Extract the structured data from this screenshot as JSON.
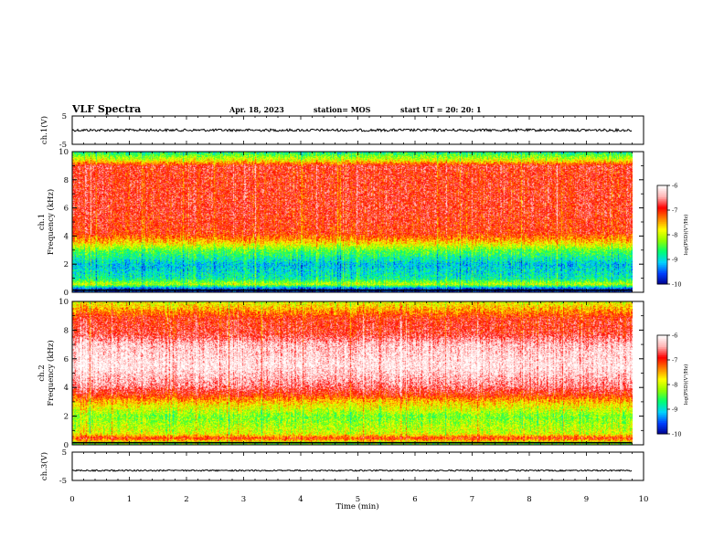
{
  "header": {
    "title": "VLF Spectra",
    "date": "Apr. 18, 2023",
    "station": "station= MOS",
    "start": "start  UT =   20: 20: 1"
  },
  "chart_data": [
    {
      "type": "line",
      "panel": "ch1-waveform",
      "ylabel": "ch.1(V)",
      "ylim": [
        -5,
        5
      ],
      "y_ticks": [
        "5",
        "-5"
      ],
      "xlim": [
        0,
        10
      ],
      "trace_level": 0,
      "trace_end": 9.8,
      "color": "#000000"
    },
    {
      "type": "heatmap",
      "panel": "ch1-spectrogram",
      "ylabel_line1": "ch.1",
      "ylabel_line2": "Frequency  (kHz)",
      "ylim": [
        0,
        10
      ],
      "y_ticks": [
        "0",
        "2",
        "4",
        "6",
        "8",
        "10"
      ],
      "xlim": [
        0,
        10
      ],
      "data_end": 9.8,
      "power_profile": [
        {
          "f": 0.0,
          "v": -9.8
        },
        {
          "f": 0.3,
          "v": -9.5
        },
        {
          "f": 0.6,
          "v": -8.0
        },
        {
          "f": 1.0,
          "v": -8.8
        },
        {
          "f": 2.0,
          "v": -9.1
        },
        {
          "f": 3.0,
          "v": -8.4
        },
        {
          "f": 3.6,
          "v": -7.6
        },
        {
          "f": 4.2,
          "v": -7.0
        },
        {
          "f": 6.0,
          "v": -6.85
        },
        {
          "f": 8.5,
          "v": -6.9
        },
        {
          "f": 9.0,
          "v": -6.8
        },
        {
          "f": 9.4,
          "v": -7.8
        },
        {
          "f": 9.8,
          "v": -8.4
        },
        {
          "f": 10.0,
          "v": -8.8
        }
      ],
      "colorbar": {
        "label": "log(PSD)(V²/Hz)",
        "range": [
          -10,
          -6
        ],
        "ticks": [
          "-6",
          "-7",
          "-8",
          "-9",
          "-10"
        ]
      }
    },
    {
      "type": "heatmap",
      "panel": "ch2-spectrogram",
      "ylabel_line1": "ch.2",
      "ylabel_line2": "Frequency  (kHz)",
      "ylim": [
        0,
        10
      ],
      "y_ticks": [
        "0",
        "2",
        "4",
        "6",
        "8",
        "10"
      ],
      "xlim": [
        0,
        10
      ],
      "data_end": 9.8,
      "power_profile": [
        {
          "f": 0.0,
          "v": -8.6
        },
        {
          "f": 0.5,
          "v": -7.0
        },
        {
          "f": 0.8,
          "v": -7.9
        },
        {
          "f": 2.0,
          "v": -8.3
        },
        {
          "f": 3.0,
          "v": -7.6
        },
        {
          "f": 3.5,
          "v": -7.0
        },
        {
          "f": 4.2,
          "v": -6.5
        },
        {
          "f": 5.5,
          "v": -6.1
        },
        {
          "f": 7.0,
          "v": -6.3
        },
        {
          "f": 7.8,
          "v": -6.8
        },
        {
          "f": 8.8,
          "v": -6.9
        },
        {
          "f": 9.5,
          "v": -7.5
        },
        {
          "f": 10.0,
          "v": -7.9
        }
      ],
      "colorbar": {
        "label": "log(PSD)(V²/Hz)",
        "range": [
          -10,
          -6
        ],
        "ticks": [
          "-6",
          "-7",
          "-8",
          "-9",
          "-10"
        ]
      }
    },
    {
      "type": "line",
      "panel": "ch3-waveform",
      "ylabel": "ch.3(V)",
      "ylim": [
        -5,
        5
      ],
      "y_ticks": [
        "5",
        "-5"
      ],
      "xlim": [
        0,
        10
      ],
      "trace_level": -1.5,
      "trace_end": 9.8,
      "color": "#000000"
    }
  ],
  "xaxis": {
    "label": "Time  (min)",
    "ticks": [
      "0",
      "1",
      "2",
      "3",
      "4",
      "5",
      "6",
      "7",
      "8",
      "9",
      "10"
    ]
  },
  "colors": {
    "colormap": [
      "#00008c",
      "#0040ff",
      "#00d2ff",
      "#00ff70",
      "#90ff00",
      "#ffff00",
      "#ff8000",
      "#ff0000",
      "#ffb4b4",
      "#ffffff"
    ]
  }
}
